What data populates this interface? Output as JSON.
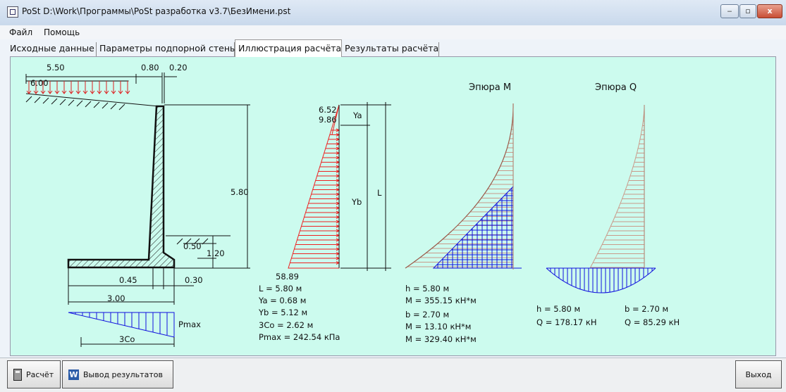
{
  "window": {
    "title": "PoSt  D:\\Work\\Программы\\PoSt разработка v3.7\\БезИмени.pst",
    "minimize": "‒",
    "maximize": "▫",
    "close": "x"
  },
  "menu": {
    "file": "Файл",
    "help": "Помощь"
  },
  "tabs": [
    {
      "label": "Исходные данные"
    },
    {
      "label": "Параметры подпорной стены"
    },
    {
      "label": "Иллюстрация расчёта"
    },
    {
      "label": "Результаты расчёта"
    }
  ],
  "wall": {
    "dim_top_left": "5.50",
    "dim_top_mid": "0.80",
    "dim_top_right": "0.20",
    "load": "6.00",
    "height": "5.80",
    "dim_050": "0.50",
    "dim_120": "1.20",
    "dim_045": "0.45",
    "dim_030": "0.30",
    "base": "3.00",
    "pmax_label": "Pmax",
    "zco_label": "3Co"
  },
  "pressure": {
    "top1": "6.52",
    "top2": "9.86",
    "ya_label": "Ya",
    "yb_label": "Yb",
    "l_label": "L",
    "bottom": "58.89",
    "results": [
      "L  = 5.80  м",
      "Ya = 0.68  м",
      "Yb = 5.12  м",
      "3Co = 2.62  м",
      "Pmax = 242.54  кПа"
    ]
  },
  "moment": {
    "title": "Эпюра M",
    "results": [
      "h = 5.80 м",
      "M = 355.15 кН*м",
      "b = 2.70 м",
      "M = 13.10 кН*м",
      "M = 329.40 кН*м"
    ]
  },
  "shear": {
    "title": "Эпюра Q",
    "results_left": [
      "h = 5.80 м",
      "Q = 178.17 кН"
    ],
    "results_right": [
      "b = 2.70 м",
      "Q = 85.29 кН"
    ]
  },
  "buttons": {
    "calc": "Расчёт",
    "export": "Вывод результатов",
    "exit": "Выход"
  },
  "colors": {
    "panel": "#ccfbee",
    "pressure": "#ee2222",
    "moment_hatch": "#c99a8a",
    "blue_fill": "#1111dd"
  }
}
